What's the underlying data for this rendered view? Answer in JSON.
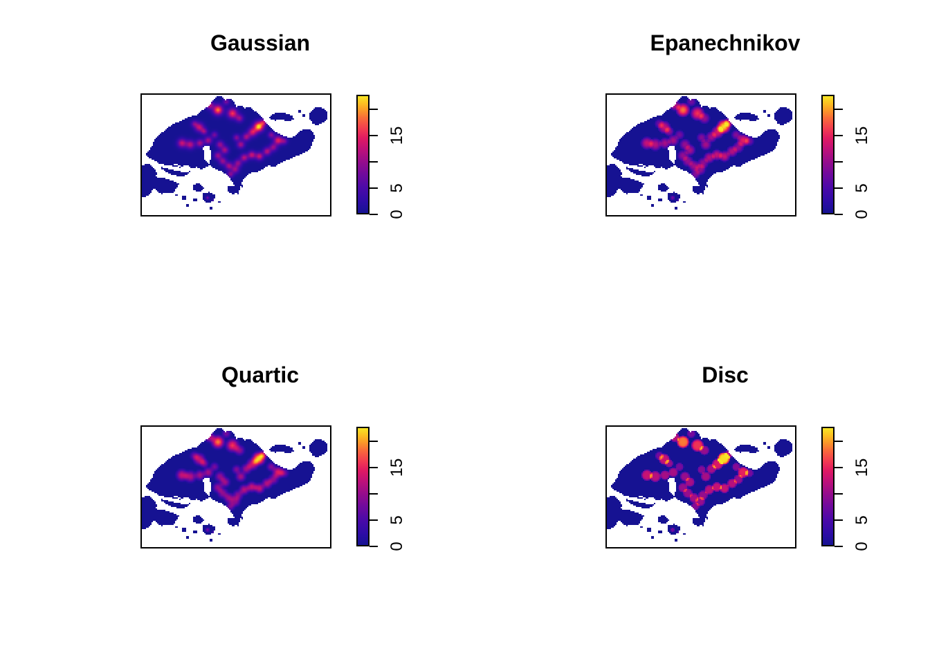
{
  "chart_data": {
    "type": "heatmap",
    "description": "2x2 grid of spatial kernel density estimate maps of Singapore, one per smoothing kernel, each with a vertical colour ribbon legend",
    "panels": [
      {
        "title": "Gaussian",
        "kernel": "gaussian"
      },
      {
        "title": "Epanechnikov",
        "kernel": "epanechnikov"
      },
      {
        "title": "Quartic",
        "kernel": "quartic"
      },
      {
        "title": "Disc",
        "kernel": "disc"
      }
    ],
    "colorbar": {
      "zlim": [
        0,
        22.8
      ],
      "ticks": [
        {
          "value": 0,
          "label": "0"
        },
        {
          "value": 5,
          "label": "5"
        },
        {
          "value": 10,
          "label": ""
        },
        {
          "value": 15,
          "label": "15"
        },
        {
          "value": 20,
          "label": ""
        }
      ],
      "gradient_stops": [
        {
          "t": 0.0,
          "color": "#161292"
        },
        {
          "t": 0.1,
          "color": "#2e0ca6"
        },
        {
          "t": 0.22,
          "color": "#4c0aa8"
        },
        {
          "t": 0.34,
          "color": "#730a9c"
        },
        {
          "t": 0.45,
          "color": "#9a0d8a"
        },
        {
          "t": 0.55,
          "color": "#c01178"
        },
        {
          "t": 0.64,
          "color": "#e01a62"
        },
        {
          "t": 0.72,
          "color": "#f23b51"
        },
        {
          "t": 0.81,
          "color": "#f96a3a"
        },
        {
          "t": 0.88,
          "color": "#fb9a28"
        },
        {
          "t": 0.94,
          "color": "#fcc122"
        },
        {
          "t": 1.0,
          "color": "#f7e525"
        }
      ]
    },
    "map": {
      "extent": [
        273,
        176
      ],
      "outline": [
        [
          5,
          86
        ],
        [
          14,
          76
        ],
        [
          20,
          62
        ],
        [
          30,
          54
        ],
        [
          45,
          42
        ],
        [
          57,
          38
        ],
        [
          68,
          32
        ],
        [
          80,
          30
        ],
        [
          88,
          22
        ],
        [
          97,
          16
        ],
        [
          103,
          8
        ],
        [
          109,
          3
        ],
        [
          116,
          3
        ],
        [
          121,
          8
        ],
        [
          127,
          5
        ],
        [
          133,
          11
        ],
        [
          137,
          18
        ],
        [
          143,
          15
        ],
        [
          149,
          20
        ],
        [
          155,
          17
        ],
        [
          161,
          22
        ],
        [
          168,
          27
        ],
        [
          174,
          33
        ],
        [
          180,
          42
        ],
        [
          188,
          50
        ],
        [
          197,
          56
        ],
        [
          206,
          60
        ],
        [
          214,
          63
        ],
        [
          222,
          59
        ],
        [
          229,
          53
        ],
        [
          236,
          49
        ],
        [
          243,
          51
        ],
        [
          248,
          54
        ],
        [
          250,
          62
        ],
        [
          246,
          70
        ],
        [
          244,
          78
        ],
        [
          238,
          82
        ],
        [
          229,
          86
        ],
        [
          220,
          90
        ],
        [
          210,
          94
        ],
        [
          200,
          99
        ],
        [
          191,
          104
        ],
        [
          183,
          102
        ],
        [
          175,
          107
        ],
        [
          167,
          111
        ],
        [
          158,
          113
        ],
        [
          151,
          117
        ],
        [
          146,
          123
        ],
        [
          143,
          130
        ],
        [
          141,
          137
        ],
        [
          139,
          144
        ],
        [
          135,
          139
        ],
        [
          134,
          131
        ],
        [
          130,
          124
        ],
        [
          125,
          118
        ],
        [
          118,
          112
        ],
        [
          111,
          109
        ],
        [
          104,
          106
        ],
        [
          98,
          101
        ],
        [
          92,
          105
        ],
        [
          86,
          108
        ],
        [
          79,
          104
        ],
        [
          72,
          107
        ],
        [
          65,
          101
        ],
        [
          57,
          104
        ],
        [
          49,
          99
        ],
        [
          41,
          102
        ],
        [
          33,
          97
        ],
        [
          25,
          99
        ],
        [
          17,
          94
        ],
        [
          10,
          91
        ]
      ],
      "islands": [
        [
          [
            243,
            26
          ],
          [
            250,
            19
          ],
          [
            258,
            18
          ],
          [
            266,
            23
          ],
          [
            269,
            30
          ],
          [
            266,
            37
          ],
          [
            258,
            42
          ],
          [
            252,
            45
          ],
          [
            246,
            40
          ],
          [
            242,
            33
          ]
        ],
        [
          [
            184,
            32
          ],
          [
            192,
            27
          ],
          [
            200,
            25
          ],
          [
            208,
            27
          ],
          [
            216,
            30
          ],
          [
            220,
            35
          ],
          [
            212,
            38
          ],
          [
            202,
            36
          ],
          [
            193,
            37
          ],
          [
            186,
            36
          ]
        ],
        [
          [
            25,
            97
          ],
          [
            52,
            103
          ],
          [
            70,
            111
          ],
          [
            60,
            119
          ],
          [
            42,
            115
          ],
          [
            28,
            107
          ]
        ],
        [
          [
            16,
            118
          ],
          [
            38,
            122
          ],
          [
            54,
            129
          ],
          [
            46,
            141
          ],
          [
            28,
            143
          ],
          [
            14,
            133
          ]
        ],
        [
          [
            0,
            102
          ],
          [
            10,
            100
          ],
          [
            18,
            106
          ],
          [
            22,
            114
          ],
          [
            16,
            124
          ],
          [
            18,
            134
          ],
          [
            10,
            146
          ],
          [
            1,
            148
          ],
          [
            0,
            130
          ]
        ],
        [
          [
            88,
            143
          ],
          [
            98,
            141
          ],
          [
            107,
            146
          ],
          [
            103,
            154
          ],
          [
            94,
            157
          ],
          [
            87,
            151
          ]
        ],
        [
          [
            74,
            130
          ],
          [
            84,
            128
          ],
          [
            90,
            136
          ],
          [
            83,
            141
          ],
          [
            75,
            138
          ]
        ],
        [
          [
            124,
            133
          ],
          [
            133,
            131
          ],
          [
            139,
            137
          ],
          [
            133,
            144
          ],
          [
            125,
            141
          ]
        ]
      ],
      "notches": [
        [
          [
            88,
            76
          ],
          [
            97,
            72
          ],
          [
            101,
            88
          ],
          [
            97,
            101
          ],
          [
            91,
            95
          ]
        ],
        [
          [
            20,
            99
          ],
          [
            52,
            104
          ],
          [
            68,
            110
          ],
          [
            66,
            113
          ],
          [
            44,
            109
          ],
          [
            22,
            103
          ]
        ]
      ],
      "specks": [
        [
          61,
          149,
          3
        ],
        [
          66,
          160,
          2
        ],
        [
          77,
          152,
          2.5
        ],
        [
          100,
          164,
          2.5
        ],
        [
          112,
          155,
          2
        ],
        [
          50,
          145,
          2
        ],
        [
          145,
          132,
          2
        ],
        [
          234,
          30,
          2.5
        ],
        [
          228,
          24,
          2
        ]
      ],
      "hotspots": [
        [
          109,
          21,
          19,
          9
        ],
        [
          97,
          14,
          12,
          7
        ],
        [
          121,
          9,
          8,
          6
        ],
        [
          130,
          26,
          16,
          9
        ],
        [
          140,
          33,
          10,
          7
        ],
        [
          168,
          45,
          22.5,
          9
        ],
        [
          159,
          53,
          14,
          8
        ],
        [
          150,
          60,
          11,
          7
        ],
        [
          175,
          39,
          11,
          6
        ],
        [
          186,
          57,
          9,
          6
        ],
        [
          196,
          65,
          15,
          8
        ],
        [
          205,
          66,
          8,
          6
        ],
        [
          82,
          46,
          13,
          8
        ],
        [
          89,
          52,
          10,
          6
        ],
        [
          75,
          41,
          8,
          6
        ],
        [
          57,
          69,
          13,
          8
        ],
        [
          69,
          71,
          12,
          8
        ],
        [
          83,
          69,
          11,
          7
        ],
        [
          95,
          65,
          11,
          7
        ],
        [
          104,
          57,
          8,
          6
        ],
        [
          112,
          71,
          10,
          7
        ],
        [
          119,
          79,
          11,
          7
        ],
        [
          109,
          87,
          10,
          7
        ],
        [
          116,
          95,
          10,
          7
        ],
        [
          125,
          102,
          11,
          7
        ],
        [
          134,
          107,
          10,
          7
        ],
        [
          127,
          114,
          9,
          6
        ],
        [
          138,
          98,
          10,
          7
        ],
        [
          147,
          90,
          12,
          7
        ],
        [
          158,
          86,
          13,
          7
        ],
        [
          169,
          88,
          13,
          7
        ],
        [
          180,
          81,
          12,
          7
        ],
        [
          189,
          75,
          10,
          7
        ],
        [
          142,
          71,
          11,
          7
        ],
        [
          136,
          61,
          9,
          6
        ],
        [
          94,
          148,
          8,
          3
        ],
        [
          103,
          152,
          5,
          3
        ]
      ]
    }
  }
}
